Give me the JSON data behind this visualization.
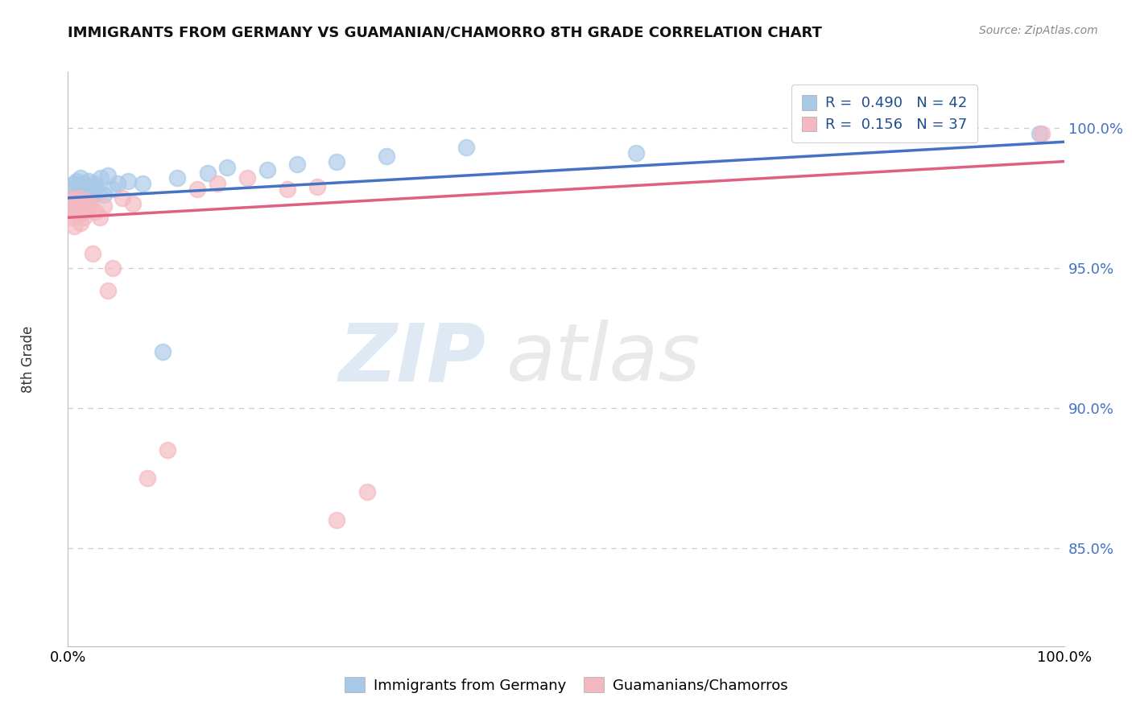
{
  "title": "IMMIGRANTS FROM GERMANY VS GUAMANIAN/CHAMORRO 8TH GRADE CORRELATION CHART",
  "source": "Source: ZipAtlas.com",
  "ylabel": "8th Grade",
  "xlim": [
    0,
    100
  ],
  "ylim": [
    81.5,
    102
  ],
  "yticks": [
    85,
    90,
    95,
    100
  ],
  "ytick_labels": [
    "85.0%",
    "90.0%",
    "95.0%",
    "100.0%"
  ],
  "legend_label_blue": "Immigrants from Germany",
  "legend_label_pink": "Guamanians/Chamorros",
  "blue_color": "#A8C8E8",
  "pink_color": "#F4B8C0",
  "blue_line_color": "#4472C4",
  "pink_line_color": "#E06080",
  "watermark_zip": "ZIP",
  "watermark_atlas": "atlas",
  "blue_x": [
    0.2,
    0.4,
    0.5,
    0.6,
    0.7,
    0.8,
    0.9,
    1.0,
    1.1,
    1.2,
    1.3,
    1.4,
    1.5,
    1.6,
    1.7,
    1.8,
    1.9,
    2.0,
    2.1,
    2.2,
    2.4,
    2.6,
    2.8,
    3.0,
    3.3,
    3.6,
    4.0,
    4.5,
    5.0,
    6.0,
    7.5,
    9.5,
    11.0,
    14.0,
    16.0,
    20.0,
    23.0,
    27.0,
    32.0,
    40.0,
    57.0,
    97.5
  ],
  "blue_y": [
    97.3,
    97.8,
    97.5,
    98.0,
    97.2,
    97.6,
    98.1,
    97.4,
    97.9,
    97.3,
    98.2,
    97.5,
    98.0,
    97.7,
    97.4,
    97.8,
    97.6,
    97.9,
    98.1,
    97.5,
    97.8,
    98.0,
    97.9,
    97.7,
    98.2,
    97.6,
    98.3,
    97.8,
    98.0,
    98.1,
    98.0,
    92.0,
    98.2,
    98.4,
    98.6,
    98.5,
    98.7,
    98.8,
    99.0,
    99.3,
    99.1,
    99.8
  ],
  "pink_x": [
    0.15,
    0.3,
    0.4,
    0.5,
    0.6,
    0.7,
    0.9,
    1.0,
    1.1,
    1.2,
    1.3,
    1.4,
    1.5,
    1.6,
    1.8,
    2.0,
    2.2,
    2.5,
    2.8,
    3.2,
    3.6,
    4.0,
    4.5,
    5.5,
    6.5,
    8.0,
    10.0,
    13.0,
    15.0,
    18.0,
    22.0,
    25.0,
    27.0,
    30.0,
    97.8
  ],
  "pink_y": [
    97.5,
    97.2,
    96.8,
    97.4,
    96.5,
    97.0,
    97.3,
    96.9,
    97.5,
    97.0,
    96.6,
    97.2,
    97.0,
    96.8,
    97.4,
    97.1,
    97.3,
    95.5,
    97.0,
    96.8,
    97.2,
    94.2,
    95.0,
    97.5,
    97.3,
    87.5,
    88.5,
    97.8,
    98.0,
    98.2,
    97.8,
    97.9,
    86.0,
    87.0,
    99.8
  ],
  "blue_line_x0": 0,
  "blue_line_y0": 97.5,
  "blue_line_x1": 100,
  "blue_line_y1": 99.5,
  "pink_line_x0": 0,
  "pink_line_y0": 96.8,
  "pink_line_x1": 100,
  "pink_line_y1": 98.8
}
